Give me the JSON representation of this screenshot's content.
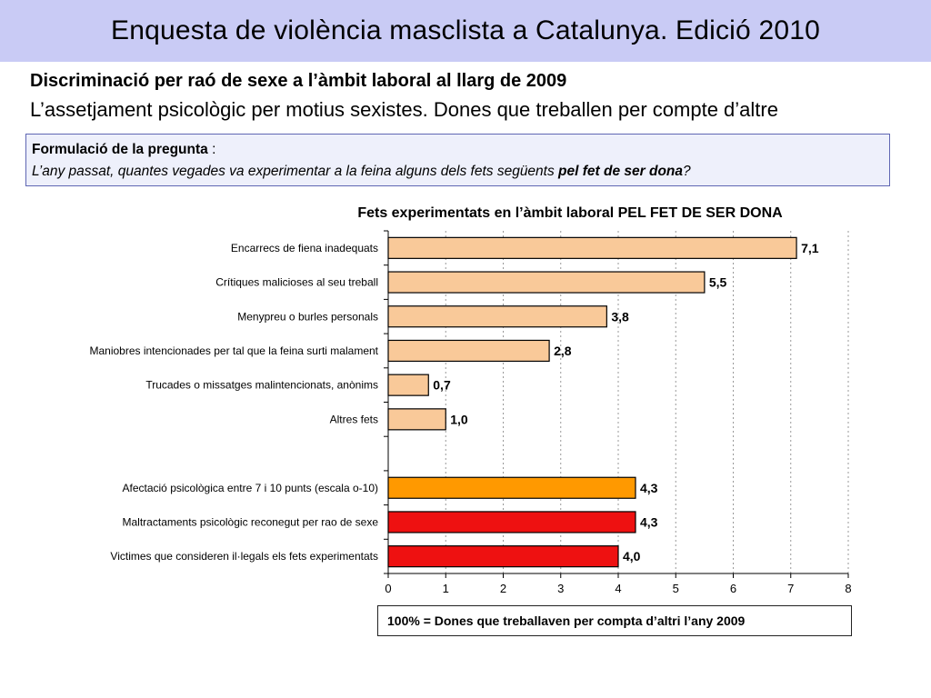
{
  "header": {
    "title": "Enquesta de violència masclista a Catalunya. Edició 2010"
  },
  "subtitle": {
    "line1": "Discriminació per raó de sexe a l’àmbit laboral al llarg de 2009",
    "line2": "L’assetjament psicològic per motius sexistes. Dones que treballen per compte d’altre"
  },
  "question": {
    "label": "Formulació de la pregunta",
    "separator": " :",
    "text": "L’any passat, quantes vegades va experimentar a la feina alguns dels fets següents ",
    "emphasis": "pel fet de ser dona",
    "end": "?"
  },
  "chart_data": {
    "type": "bar",
    "orientation": "horizontal",
    "title": "Fets experimentats en l’àmbit laboral PEL FET DE SER DONA",
    "xlim": [
      0,
      8
    ],
    "x_ticks": [
      "0",
      "1",
      "2",
      "3",
      "4",
      "5",
      "6",
      "7",
      "8"
    ],
    "grid": "vertical dotted",
    "categories": [
      "Encarrecs de fiena inadequats",
      "Crítiques malicioses al seu treball",
      "Menypreu o burles personals",
      "Maniobres intencionades per tal que la feina surti malament",
      "Trucades o missatges malintencionats, anònims",
      "Altres fets",
      "",
      "Afectació psicològica entre 7 i 10 punts (escala o-10)",
      "Maltractaments psicològic reconegut per rao de sexe",
      "Victimes que consideren il·legals els fets experimentats"
    ],
    "values": [
      7.1,
      5.5,
      3.8,
      2.8,
      0.7,
      1.0,
      null,
      4.3,
      4.3,
      4.0
    ],
    "value_labels": [
      "7,1",
      "5,5",
      "3,8",
      "2,8",
      "0,7",
      "1,0",
      "",
      "4,3",
      "4,3",
      "4,0"
    ],
    "colors": [
      "#f9c999",
      "#f9c999",
      "#f9c999",
      "#f9c999",
      "#f9c999",
      "#f9c999",
      "",
      "#ff9900",
      "#ee1111",
      "#ee1111"
    ]
  },
  "footnote": "100% = Dones que treballaven per compta d’altri  l’any 2009"
}
